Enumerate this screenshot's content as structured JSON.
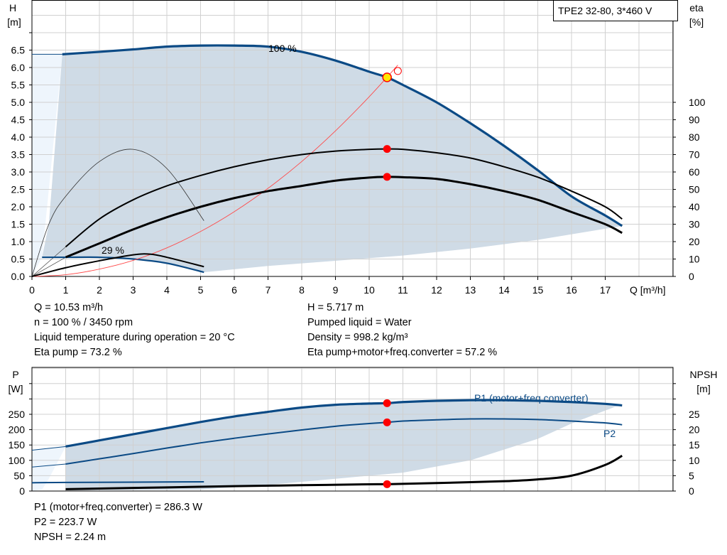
{
  "colors": {
    "pump_curve": "#0b4a85",
    "area": "#cfdbe6",
    "area_light": "#eef5fc",
    "grid": "#d0d0d0",
    "marker": "#ff0000",
    "system_curve": "#ff4a4a",
    "duty_point": "#ffe600"
  },
  "chart_data": [
    {
      "type": "line",
      "title": "TPE2 32-80, 3*460 V",
      "xlabel": "Q [m³/h]",
      "ylabel": "H\n[m]",
      "y2label": "eta\n[%]",
      "xlim": [
        0,
        19
      ],
      "ylim": [
        0,
        7.5
      ],
      "y2lim": [
        0,
        150
      ],
      "xticks": [
        0,
        1,
        2,
        3,
        4,
        5,
        6,
        7,
        8,
        9,
        10,
        11,
        12,
        13,
        14,
        15,
        16,
        17
      ],
      "yticks": [
        "0.0",
        "0.5",
        "1.0",
        "1.5",
        "2.0",
        "2.5",
        "3.0",
        "3.5",
        "4.0",
        "4.5",
        "5.0",
        "5.5",
        "6.0",
        "6.5"
      ],
      "y2ticks": [
        0,
        10,
        20,
        30,
        40,
        50,
        60,
        70,
        80,
        90,
        100
      ],
      "grid": true,
      "curve_labels": [
        "100 %",
        "29 %"
      ],
      "series": [
        {
          "axis": "H",
          "style": "pump-100",
          "x": [
            0.9,
            2,
            3,
            4,
            5,
            6,
            7,
            8,
            9,
            10,
            10.53,
            11,
            12,
            13,
            14,
            15,
            16,
            17,
            17.5
          ],
          "y": [
            6.38,
            6.45,
            6.52,
            6.6,
            6.63,
            6.63,
            6.6,
            6.45,
            6.2,
            5.88,
            5.717,
            5.5,
            5.0,
            4.4,
            3.75,
            3.05,
            2.3,
            1.75,
            1.45
          ]
        },
        {
          "axis": "H",
          "style": "pump-29",
          "x": [
            0.3,
            1,
            2,
            3,
            4,
            5.1
          ],
          "y": [
            0.55,
            0.55,
            0.55,
            0.5,
            0.38,
            0.12
          ]
        },
        {
          "axis": "H",
          "style": "system",
          "x": [
            0,
            1,
            2,
            3,
            4,
            5,
            6,
            7,
            8,
            9,
            10,
            10.85
          ],
          "y": [
            0,
            0.05,
            0.21,
            0.46,
            0.82,
            1.29,
            1.86,
            2.53,
            3.3,
            4.18,
            5.16,
            6.07
          ]
        },
        {
          "axis": "eta",
          "style": "eta-pump",
          "x": [
            1,
            2,
            3,
            4,
            5,
            6,
            7,
            8,
            9,
            10,
            10.53,
            11,
            12,
            13,
            14,
            15,
            16,
            17,
            17.5
          ],
          "y": [
            17,
            33,
            44,
            52,
            58,
            63,
            67,
            70,
            72,
            73,
            73.2,
            73,
            71,
            68,
            63,
            57,
            49,
            40,
            33
          ]
        },
        {
          "axis": "eta",
          "style": "eta-total",
          "x": [
            1,
            2,
            3,
            4,
            5,
            6,
            7,
            8,
            9,
            10,
            10.53,
            11,
            12,
            13,
            14,
            15,
            16,
            17,
            17.5
          ],
          "y": [
            11,
            19,
            27,
            34,
            40,
            45,
            49,
            52,
            55,
            56.8,
            57.2,
            57,
            56,
            53,
            49,
            44,
            37,
            30,
            25
          ]
        },
        {
          "axis": "eta",
          "style": "eta-pump-29",
          "x": [
            0,
            0.5,
            1,
            2,
            3,
            4,
            5.1
          ],
          "y": [
            0,
            30,
            46,
            66,
            73,
            62,
            32
          ]
        },
        {
          "axis": "eta",
          "style": "eta-total-29",
          "x": [
            0,
            1,
            2,
            3,
            3.5,
            4,
            5.1
          ],
          "y": [
            0,
            5,
            9,
            12.4,
            12.8,
            11,
            5.6
          ]
        }
      ],
      "duty_point": {
        "Q": 10.53,
        "H": 5.717,
        "eta_pump": 73.2,
        "eta_total": 57.2
      }
    },
    {
      "type": "line",
      "ylabel": "P\n[W]",
      "y2label": "NPSH\n[m]",
      "xlim": [
        0,
        19
      ],
      "ylim": [
        0,
        400
      ],
      "y2lim": [
        0,
        40
      ],
      "yticks": [
        0,
        50,
        100,
        150,
        200,
        250
      ],
      "y2ticks": [
        0,
        5,
        10,
        15,
        20,
        25
      ],
      "grid": true,
      "series": [
        {
          "name": "P1 (motor+freq.converter)",
          "axis": "P",
          "style": "p1",
          "x": [
            1,
            2,
            3,
            4,
            5,
            6,
            7,
            8,
            9,
            10,
            10.53,
            11,
            12,
            13,
            14,
            15,
            16,
            17,
            17.5
          ],
          "y": [
            145,
            165,
            185,
            205,
            225,
            243,
            258,
            272,
            281,
            285,
            286.3,
            290,
            294,
            296,
            296,
            294,
            290,
            284,
            279
          ]
        },
        {
          "name": "P2",
          "axis": "P",
          "style": "p2",
          "x": [
            1,
            2,
            3,
            4,
            5,
            6,
            7,
            8,
            9,
            10,
            10.53,
            11,
            12,
            13,
            14,
            15,
            16,
            17,
            17.5
          ],
          "y": [
            88,
            105,
            122,
            140,
            157,
            172,
            186,
            199,
            211,
            220,
            223.7,
            228,
            232,
            235,
            235,
            233,
            228,
            222,
            216
          ]
        },
        {
          "axis": "P",
          "style": "p2-29",
          "x": [
            0,
            1,
            5.1
          ],
          "y": [
            27,
            28,
            30
          ]
        },
        {
          "axis": "NPSH",
          "style": "npsh",
          "x": [
            1,
            2,
            4,
            6,
            8,
            10,
            10.53,
            12,
            14,
            15,
            16,
            17,
            17.5
          ],
          "y": [
            0.6,
            0.8,
            1.2,
            1.6,
            1.9,
            2.2,
            2.24,
            2.6,
            3.2,
            3.8,
            5,
            8.5,
            11.5
          ]
        }
      ],
      "duty_point": {
        "Q": 10.53,
        "P1": 286.3,
        "P2": 223.7,
        "NPSH": 2.24
      }
    }
  ],
  "info_top_left": [
    "Q = 10.53 m³/h",
    "n = 100 % / 3450 rpm",
    "Liquid temperature during operation = 20 °C",
    "Eta pump = 73.2 %"
  ],
  "info_top_right": [
    "H = 5.717 m",
    "Pumped liquid = Water",
    "Density = 998.2 kg/m³",
    "Eta pump+motor+freq.converter = 57.2 %"
  ],
  "info_bottom": [
    "P1 (motor+freq.converter) = 286.3 W",
    "P2 = 223.7 W",
    "NPSH = 2.24 m"
  ]
}
